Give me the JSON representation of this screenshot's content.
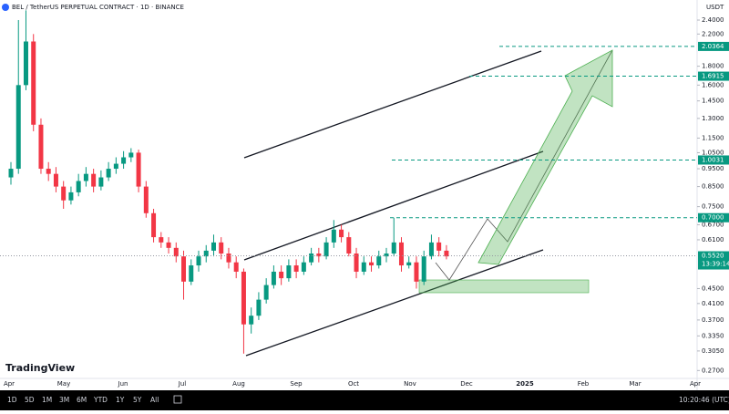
{
  "chart_data": {
    "type": "candlestick",
    "title": "BEL / TetherUS PERPETUAL CONTRACT · 1D · BINANCE",
    "currency": "USDT",
    "brand": "TradingView",
    "x_labels": [
      "Apr",
      "May",
      "Jun",
      "Jul",
      "Aug",
      "Sep",
      "Oct",
      "Nov",
      "Dec",
      "2025",
      "Feb",
      "Mar",
      "Apr"
    ],
    "open": [
      0.9,
      0.95,
      1.6,
      2.1,
      1.25,
      0.95,
      0.92,
      0.85,
      0.78,
      0.82,
      0.88,
      0.92,
      0.85,
      0.9,
      0.95,
      0.98,
      1.02,
      1.05,
      0.85,
      0.72,
      0.62,
      0.6,
      0.58,
      0.55,
      0.47,
      0.52,
      0.55,
      0.57,
      0.6,
      0.56,
      0.53,
      0.5,
      0.36,
      0.38,
      0.42,
      0.46,
      0.5,
      0.48,
      0.52,
      0.5,
      0.53,
      0.56,
      0.55,
      0.6,
      0.65,
      0.62,
      0.56,
      0.5,
      0.53,
      0.52,
      0.55,
      0.56,
      0.6,
      0.52,
      0.53,
      0.47,
      0.55,
      0.6,
      0.57
    ],
    "high": [
      0.99,
      2.4,
      2.55,
      2.2,
      1.3,
      0.99,
      0.96,
      0.88,
      0.85,
      0.92,
      0.96,
      0.95,
      0.94,
      0.99,
      1.02,
      1.06,
      1.08,
      1.07,
      0.88,
      0.74,
      0.64,
      0.62,
      0.6,
      0.57,
      0.54,
      0.57,
      0.59,
      0.63,
      0.62,
      0.58,
      0.55,
      0.51,
      0.4,
      0.44,
      0.48,
      0.52,
      0.52,
      0.54,
      0.54,
      0.55,
      0.58,
      0.58,
      0.62,
      0.69,
      0.67,
      0.64,
      0.58,
      0.55,
      0.55,
      0.57,
      0.58,
      0.7,
      0.62,
      0.55,
      0.55,
      0.57,
      0.63,
      0.62,
      0.59
    ],
    "low": [
      0.86,
      0.92,
      1.55,
      1.2,
      0.92,
      0.88,
      0.82,
      0.74,
      0.76,
      0.8,
      0.85,
      0.82,
      0.83,
      0.88,
      0.92,
      0.95,
      0.99,
      0.82,
      0.7,
      0.6,
      0.58,
      0.56,
      0.53,
      0.42,
      0.46,
      0.5,
      0.53,
      0.55,
      0.54,
      0.51,
      0.48,
      0.3,
      0.34,
      0.37,
      0.41,
      0.45,
      0.46,
      0.47,
      0.48,
      0.49,
      0.52,
      0.53,
      0.54,
      0.58,
      0.6,
      0.55,
      0.48,
      0.49,
      0.5,
      0.51,
      0.53,
      0.55,
      0.5,
      0.51,
      0.45,
      0.46,
      0.54,
      0.55,
      0.54
    ],
    "close": [
      0.95,
      1.6,
      2.1,
      1.25,
      0.95,
      0.92,
      0.85,
      0.78,
      0.82,
      0.88,
      0.92,
      0.85,
      0.9,
      0.95,
      0.98,
      1.02,
      1.05,
      0.85,
      0.72,
      0.62,
      0.6,
      0.58,
      0.55,
      0.47,
      0.52,
      0.55,
      0.57,
      0.6,
      0.56,
      0.53,
      0.5,
      0.36,
      0.38,
      0.42,
      0.46,
      0.5,
      0.48,
      0.52,
      0.5,
      0.53,
      0.56,
      0.55,
      0.6,
      0.65,
      0.62,
      0.56,
      0.5,
      0.53,
      0.52,
      0.55,
      0.56,
      0.6,
      0.52,
      0.53,
      0.47,
      0.55,
      0.6,
      0.57,
      0.55
    ],
    "up_color": "#089981",
    "down_color": "#f23645",
    "log_scale": true,
    "ylim": [
      0.257,
      2.72
    ],
    "yticks": [
      {
        "value": 2.4,
        "label": "2.4000"
      },
      {
        "value": 2.2,
        "label": "2.2000"
      },
      {
        "value": 1.8,
        "label": "1.8000"
      },
      {
        "value": 1.6,
        "label": "1.6000"
      },
      {
        "value": 1.45,
        "label": "1.4500"
      },
      {
        "value": 1.3,
        "label": "1.3000"
      },
      {
        "value": 1.15,
        "label": "1.1500"
      },
      {
        "value": 1.05,
        "label": "1.0500"
      },
      {
        "value": 0.95,
        "label": "0.9500"
      },
      {
        "value": 0.85,
        "label": "0.8500"
      },
      {
        "value": 0.75,
        "label": "0.7500"
      },
      {
        "value": 0.67,
        "label": "0.6700"
      },
      {
        "value": 0.61,
        "label": "0.6100"
      },
      {
        "value": 0.45,
        "label": "0.4500"
      },
      {
        "value": 0.41,
        "label": "0.4100"
      },
      {
        "value": 0.37,
        "label": "0.3700"
      },
      {
        "value": 0.335,
        "label": "0.3350"
      },
      {
        "value": 0.305,
        "label": "0.3050"
      },
      {
        "value": 0.27,
        "label": "0.2700"
      }
    ],
    "grid": false,
    "levels": [
      2.0364,
      1.6915,
      1.0031,
      {
        "value": 0.7,
        "label": "0.7000"
      }
    ],
    "level_color": "#089981",
    "last_price": {
      "value": 0.552,
      "label": "0.5520"
    },
    "countdown": "13:39:14",
    "ranges": [
      "1D",
      "5D",
      "1M",
      "3M",
      "6M",
      "YTD",
      "1Y",
      "5Y",
      "All"
    ],
    "clock": "10:20:46 (UTC)"
  }
}
